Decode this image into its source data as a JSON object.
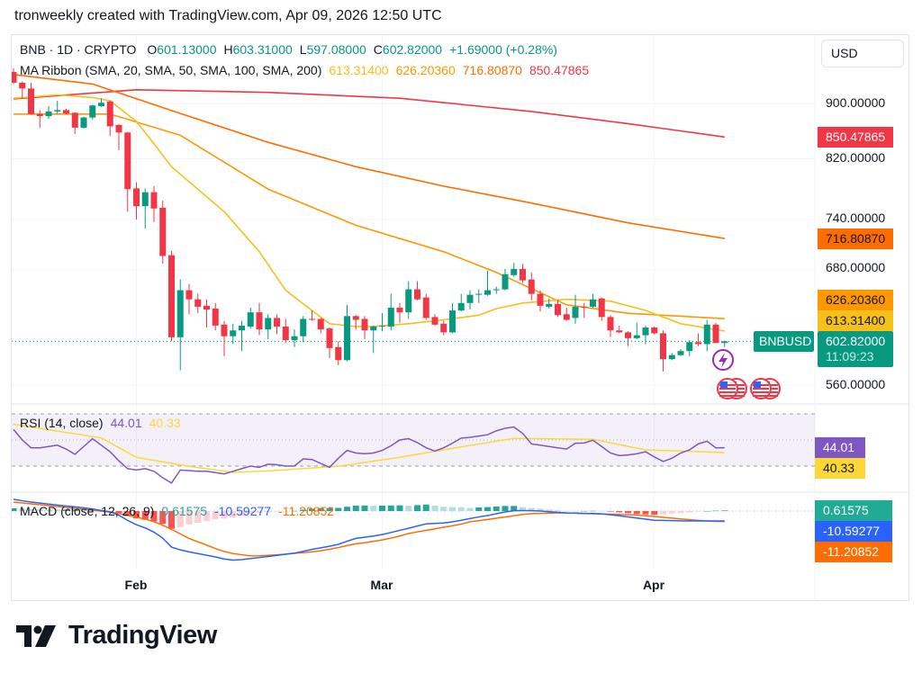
{
  "header": {
    "attribution": "tronweekly created with TradingView.com, Apr 09, 2026 12:50 UTC"
  },
  "legend": {
    "symbol": "BNB · 1D · CRYPTO",
    "o_label": "O",
    "o": "601.13000",
    "h_label": "H",
    "h": "603.31000",
    "l_label": "L",
    "l": "597.08000",
    "c_label": "C",
    "c": "602.82000",
    "change": "+1.69000 (+0.28%)"
  },
  "ma_legend": {
    "title": "MA Ribbon (SMA, 20, SMA, 50, SMA, 100, SMA, 200)",
    "values": [
      "613.31400",
      "626.20360",
      "716.80870",
      "850.47865"
    ]
  },
  "currency_button": "USD",
  "price_axis": {
    "ticks": [
      900,
      820,
      740,
      680,
      560
    ],
    "labels": [
      "900.00000",
      "820.00000",
      "740.00000",
      "680.00000",
      "560.00000"
    ],
    "scale": "log"
  },
  "price_tags": {
    "sma200": "850.47865",
    "sma100": "716.80870",
    "sma50": "626.20360",
    "sma20": "613.31400",
    "last": "602.82000",
    "countdown": "11:09:23",
    "symbol": "BNBUSD"
  },
  "icons": {
    "event": "lightning-icon",
    "flags": [
      "us-flag-icon",
      "us-flag-icon"
    ]
  },
  "time_axis": {
    "labels": [
      "Feb",
      "Mar",
      "Apr"
    ],
    "dates": [
      "2026-02-01",
      "2026-03-01",
      "2026-04-01"
    ]
  },
  "rsi": {
    "title": "RSI (14, close)",
    "value": "44.01",
    "ma_value": "40.33",
    "bands": [
      70,
      50,
      30
    ],
    "values": [
      58,
      50,
      44,
      44,
      45,
      46,
      43,
      39,
      45,
      51,
      46,
      41,
      34,
      28,
      27,
      28,
      26,
      21,
      17,
      27,
      26.5,
      26,
      26,
      25,
      24,
      26,
      28,
      30,
      29,
      31.5,
      31,
      30,
      30,
      35.5,
      35,
      32,
      29,
      36,
      42,
      40,
      39.5,
      40,
      42,
      45.5,
      50,
      51,
      48,
      44,
      41.5,
      44,
      47.5,
      51.5,
      52,
      53,
      54,
      57,
      59,
      60,
      55,
      47,
      46,
      45,
      44,
      43,
      47.5,
      47.7,
      49.8,
      45,
      40,
      38,
      38.5,
      39.4,
      41,
      37,
      33.5,
      36,
      40,
      42.4,
      47,
      49,
      44,
      44.01
    ],
    "ma_points": [
      [
        "2026-01-18",
        62
      ],
      [
        "2026-01-28",
        51.6
      ],
      [
        "2026-02-01",
        36.7
      ],
      [
        "2026-02-07",
        29.8
      ],
      [
        "2026-02-12",
        25.2
      ],
      [
        "2026-02-16",
        26.3
      ],
      [
        "2026-02-24",
        29.8
      ],
      [
        "2026-03-03",
        36.7
      ],
      [
        "2026-03-10",
        44.7
      ],
      [
        "2026-03-16",
        51.2
      ],
      [
        "2026-03-25",
        50.5
      ],
      [
        "2026-03-31",
        42.4
      ],
      [
        "2026-04-05",
        41.3
      ],
      [
        "2026-04-09",
        40.33
      ]
    ]
  },
  "macd": {
    "title": "MACD (close, 12, 26, 9)",
    "hist": "0.61575",
    "macd": "-10.59277",
    "signal": "-11.20852",
    "macd_values": [
      12.5,
      11,
      9.6,
      8.5,
      7.5,
      6.4,
      5.4,
      4.4,
      3.5,
      2.2,
      0.6,
      -0.8,
      -4.5,
      -10,
      -14.6,
      -18,
      -22.5,
      -29,
      -38.5,
      -41.5,
      -43.6,
      -45.4,
      -47.2,
      -49,
      -51.3,
      -52.4,
      -51.9,
      -50.7,
      -49.7,
      -48.6,
      -47.4,
      -46.2,
      -45,
      -43,
      -41,
      -39.3,
      -37.6,
      -35.6,
      -32.3,
      -29.2,
      -28,
      -26.7,
      -25.1,
      -22.9,
      -20.6,
      -18.4,
      -16,
      -13.7,
      -13.2,
      -12.7,
      -11.5,
      -9.9,
      -8.1,
      -6.3,
      -4.8,
      -2.9,
      -1,
      0.4,
      0.5,
      0.4,
      0,
      -0.7,
      -1.3,
      -2,
      -2.2,
      -2.5,
      -2.7,
      -3,
      -4,
      -5,
      -6.3,
      -7.5,
      -8.6,
      -9.8,
      -10,
      -10.2,
      -10.5,
      -10.6,
      -10.6,
      -10.6,
      -10.6,
      -10.59277
    ],
    "signal_values": [
      9.6,
      8.6,
      7.7,
      6.7,
      5.8,
      4.8,
      3.8,
      2.8,
      1.9,
      0.9,
      -0.1,
      -1.1,
      -2.6,
      -4.6,
      -6.6,
      -8.6,
      -11.4,
      -15.2,
      -19.6,
      -24.4,
      -29.3,
      -32.9,
      -36.4,
      -40.1,
      -43.3,
      -45.4,
      -46.7,
      -47.9,
      -47.8,
      -47.3,
      -46.8,
      -46,
      -45.2,
      -44.5,
      -43.6,
      -42.4,
      -40.9,
      -39,
      -36.9,
      -35,
      -33.9,
      -32.3,
      -30.9,
      -28.9,
      -26.7,
      -24,
      -22.3,
      -20.7,
      -19,
      -17.3,
      -15.7,
      -14,
      -11.4,
      -10.2,
      -9,
      -7.7,
      -6.4,
      -5,
      -3.6,
      -2.8,
      -2.5,
      -2.3,
      -2,
      -2.1,
      -2.3,
      -2.6,
      -2.9,
      -3.1,
      -3.4,
      -3.7,
      -4,
      -4.3,
      -5,
      -5.8,
      -6.7,
      -7.6,
      -8.4,
      -9.2,
      -10,
      -10.6,
      -11,
      -11.20852
    ]
  },
  "logo": "TradingView",
  "colors": {
    "up": "#089981",
    "down": "#f23645",
    "sma20": "#f5c018",
    "sma50": "#ff9800",
    "sma100": "#ff6d00",
    "sma200": "#f23645",
    "rsi": "#7e57c2",
    "rsi_ma": "#fdd835",
    "macd": "#2962ff",
    "signal": "#ff6d00",
    "hist_up_strong": "#26a69a",
    "hist_up_weak": "#b2dfdb",
    "hist_down_strong": "#ff5252",
    "hist_down_weak": "#ffcdd2"
  },
  "chart_data": {
    "type": "candlestick",
    "symbol": "BNB · 1D · CRYPTO",
    "y_scale": "log",
    "ylim": [
      540,
      960
    ],
    "candles": [
      [
        "2026-01-18",
        949,
        955,
        930,
        932
      ],
      [
        "2026-01-19",
        932,
        934,
        907,
        923
      ],
      [
        "2026-01-20",
        923,
        932,
        883,
        884
      ],
      [
        "2026-01-21",
        884,
        890,
        864,
        881
      ],
      [
        "2026-01-22",
        881,
        896,
        877,
        888
      ],
      [
        "2026-01-23",
        888,
        904,
        884,
        890
      ],
      [
        "2026-01-24",
        890,
        892,
        884,
        885
      ],
      [
        "2026-01-25",
        886,
        887,
        855,
        864
      ],
      [
        "2026-01-26",
        864,
        880,
        863,
        879
      ],
      [
        "2026-01-27",
        879,
        898,
        876,
        897
      ],
      [
        "2026-01-28",
        896,
        908,
        895,
        901
      ],
      [
        "2026-01-29",
        903,
        905,
        852,
        866
      ],
      [
        "2026-01-30",
        868,
        869,
        832,
        857
      ],
      [
        "2026-01-31",
        857,
        858,
        750,
        779
      ],
      [
        "2026-02-01",
        780,
        788,
        740,
        757
      ],
      [
        "2026-02-02",
        757,
        780,
        729,
        775
      ],
      [
        "2026-02-03",
        775,
        783,
        737,
        754
      ],
      [
        "2026-02-04",
        755,
        764,
        687,
        696
      ],
      [
        "2026-02-05",
        697,
        702,
        603,
        607
      ],
      [
        "2026-02-06",
        607,
        669,
        574,
        657
      ],
      [
        "2026-02-07",
        657,
        664,
        631,
        647
      ],
      [
        "2026-02-08",
        647,
        653,
        632,
        639
      ],
      [
        "2026-02-09",
        640,
        647,
        617,
        636
      ],
      [
        "2026-02-10",
        637,
        643,
        614,
        619
      ],
      [
        "2026-02-11",
        620,
        624,
        588,
        608
      ],
      [
        "2026-02-12",
        608,
        621,
        600,
        614
      ],
      [
        "2026-02-13",
        614,
        624,
        593,
        619
      ],
      [
        "2026-02-14",
        618,
        638,
        616,
        633
      ],
      [
        "2026-02-15",
        633,
        643,
        609,
        615
      ],
      [
        "2026-02-16",
        615,
        631,
        605,
        627
      ],
      [
        "2026-02-17",
        627,
        631,
        610,
        618
      ],
      [
        "2026-02-18",
        618,
        626,
        601,
        604
      ],
      [
        "2026-02-19",
        604,
        615,
        597,
        608
      ],
      [
        "2026-02-20",
        608,
        629,
        602,
        626
      ],
      [
        "2026-02-21",
        626,
        635,
        624,
        625
      ],
      [
        "2026-02-22",
        626,
        627,
        611,
        615
      ],
      [
        "2026-02-23",
        616,
        617,
        586,
        596
      ],
      [
        "2026-02-24",
        597,
        603,
        579,
        584
      ],
      [
        "2026-02-25",
        584,
        641,
        583,
        629
      ],
      [
        "2026-02-26",
        629,
        630,
        615,
        625
      ],
      [
        "2026-02-27",
        626,
        629,
        605,
        614
      ],
      [
        "2026-02-28",
        614,
        619,
        591,
        618
      ],
      [
        "2026-03-01",
        618,
        632,
        613,
        619
      ],
      [
        "2026-03-02",
        618,
        653,
        614,
        638
      ],
      [
        "2026-03-03",
        638,
        643,
        622,
        633
      ],
      [
        "2026-03-04",
        633,
        667,
        626,
        658
      ],
      [
        "2026-03-05",
        658,
        667,
        646,
        647
      ],
      [
        "2026-03-06",
        649,
        653,
        625,
        627
      ],
      [
        "2026-03-07",
        628,
        631,
        619,
        620
      ],
      [
        "2026-03-08",
        621,
        624,
        609,
        612
      ],
      [
        "2026-03-09",
        612,
        643,
        611,
        635
      ],
      [
        "2026-03-10",
        635,
        653,
        634,
        643
      ],
      [
        "2026-03-11",
        643,
        657,
        636,
        652
      ],
      [
        "2026-03-12",
        652,
        658,
        643,
        653
      ],
      [
        "2026-03-13",
        652,
        679,
        651,
        657
      ],
      [
        "2026-03-14",
        657,
        661,
        653,
        658
      ],
      [
        "2026-03-15",
        658,
        681,
        657,
        675
      ],
      [
        "2026-03-16",
        674,
        688,
        672,
        681
      ],
      [
        "2026-03-17",
        681,
        687,
        665,
        668
      ],
      [
        "2026-03-18",
        669,
        677,
        646,
        653
      ],
      [
        "2026-03-19",
        653,
        657,
        634,
        640
      ],
      [
        "2026-03-20",
        639,
        648,
        637,
        642
      ],
      [
        "2026-03-21",
        642,
        647,
        628,
        630
      ],
      [
        "2026-03-22",
        631,
        638,
        624,
        625
      ],
      [
        "2026-03-23",
        627,
        652,
        621,
        639
      ],
      [
        "2026-03-24",
        639,
        643,
        627,
        638
      ],
      [
        "2026-03-25",
        639,
        653,
        638,
        647
      ],
      [
        "2026-03-26",
        648,
        649,
        624,
        628
      ],
      [
        "2026-03-27",
        628,
        630,
        607,
        614
      ],
      [
        "2026-03-28",
        614,
        619,
        611,
        612
      ],
      [
        "2026-03-29",
        612,
        613,
        598,
        606
      ],
      [
        "2026-03-30",
        606,
        622,
        605,
        609
      ],
      [
        "2026-03-31",
        609,
        619,
        600,
        617
      ],
      [
        "2026-04-01",
        617,
        618,
        610,
        611
      ],
      [
        "2026-04-02",
        611,
        614,
        573,
        585
      ],
      [
        "2026-04-03",
        585,
        591,
        584,
        589
      ],
      [
        "2026-04-04",
        589,
        595,
        588,
        593
      ],
      [
        "2026-04-05",
        593,
        604,
        588,
        602
      ],
      [
        "2026-04-06",
        602,
        611,
        598,
        600
      ],
      [
        "2026-04-07",
        600,
        625,
        593,
        620
      ],
      [
        "2026-04-08",
        620,
        622,
        601,
        601.13
      ],
      [
        "2026-04-09",
        601.13,
        603.31,
        597.08,
        602.82
      ]
    ],
    "ma": {
      "sma20": [
        [
          "2026-01-18",
          908
        ],
        [
          "2026-01-23",
          913
        ],
        [
          "2026-01-27",
          909
        ],
        [
          "2026-01-29",
          904
        ],
        [
          "2026-02-01",
          873
        ],
        [
          "2026-02-03",
          841
        ],
        [
          "2026-02-05",
          809
        ],
        [
          "2026-02-11",
          750
        ],
        [
          "2026-02-15",
          701
        ],
        [
          "2026-02-18",
          657
        ],
        [
          "2026-02-20",
          642
        ],
        [
          "2026-02-23",
          621
        ],
        [
          "2026-02-26",
          618
        ],
        [
          "2026-02-28",
          618
        ],
        [
          "2026-03-04",
          621
        ],
        [
          "2026-03-08",
          625
        ],
        [
          "2026-03-12",
          630
        ],
        [
          "2026-03-14",
          637
        ],
        [
          "2026-03-17",
          643
        ],
        [
          "2026-03-22",
          647
        ],
        [
          "2026-03-27",
          645
        ],
        [
          "2026-03-31",
          635
        ],
        [
          "2026-04-04",
          621
        ],
        [
          "2026-04-09",
          613.314
        ]
      ],
      "sma50": [
        [
          "2026-01-18",
          884
        ],
        [
          "2026-01-29",
          884
        ],
        [
          "2026-02-06",
          853
        ],
        [
          "2026-02-16",
          779
        ],
        [
          "2026-02-26",
          733
        ],
        [
          "2026-03-08",
          701
        ],
        [
          "2026-03-14",
          677
        ],
        [
          "2026-03-22",
          641
        ],
        [
          "2026-03-29",
          632
        ],
        [
          "2026-04-09",
          626.2036
        ]
      ],
      "sma100": [
        [
          "2026-01-18",
          945
        ],
        [
          "2026-01-27",
          930
        ],
        [
          "2026-02-06",
          885
        ],
        [
          "2026-02-16",
          843
        ],
        [
          "2026-02-26",
          809
        ],
        [
          "2026-03-08",
          783
        ],
        [
          "2026-03-18",
          761
        ],
        [
          "2026-03-29",
          736
        ],
        [
          "2026-04-09",
          716.8087
        ]
      ],
      "sma200": [
        [
          "2026-01-18",
          907
        ],
        [
          "2026-02-01",
          921
        ],
        [
          "2026-02-16",
          917
        ],
        [
          "2026-03-03",
          908
        ],
        [
          "2026-03-18",
          888
        ],
        [
          "2026-03-29",
          870
        ],
        [
          "2026-04-09",
          850.47865
        ]
      ]
    }
  }
}
